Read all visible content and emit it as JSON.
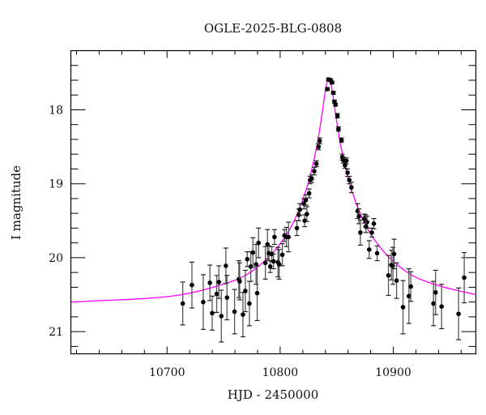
{
  "chart_data": {
    "type": "scatter",
    "title": "OGLE-2025-BLG-0808",
    "xlabel": "HJD - 2450000",
    "ylabel": "I magnitude",
    "xlim": [
      10615,
      10973
    ],
    "ylim": [
      21.3,
      17.2
    ],
    "y_inverted": true,
    "grid": false,
    "x_ticks": [
      10700,
      10800,
      10900
    ],
    "x_tick_labels": [
      "10700",
      "10800",
      "10900"
    ],
    "y_ticks": [
      18,
      19,
      20,
      21
    ],
    "y_tick_labels": [
      "18",
      "19",
      "20",
      "21"
    ],
    "colors": {
      "points": "#000000",
      "errorbars": "#555555",
      "model": "#ff00ff",
      "axes": "#000000"
    },
    "series": [
      {
        "kind": "data-with-errorbars",
        "points": [
          [
            10713.9,
            20.62,
            0.29
          ],
          [
            10722.0,
            20.37,
            0.31
          ],
          [
            10732.0,
            20.6,
            0.37
          ],
          [
            10737.9,
            20.34,
            0.24
          ],
          [
            10739.9,
            20.75,
            0.23
          ],
          [
            10743.9,
            20.49,
            0.25
          ],
          [
            10745.8,
            20.33,
            0.22
          ],
          [
            10748.0,
            20.79,
            0.35
          ],
          [
            10752.0,
            20.11,
            0.24
          ],
          [
            10753.0,
            20.54,
            0.3
          ],
          [
            10759.7,
            20.73,
            0.3
          ],
          [
            10763.5,
            20.29,
            0.25
          ],
          [
            10764.2,
            20.32,
            0.25
          ],
          [
            10767.1,
            20.77,
            0.3
          ],
          [
            10769.2,
            20.45,
            0.28
          ],
          [
            10770.9,
            20.02,
            0.1
          ],
          [
            10772.8,
            20.62,
            0.3
          ],
          [
            10774.0,
            20.12,
            0.2
          ],
          [
            10775.9,
            19.93,
            0.2
          ],
          [
            10778.7,
            20.09,
            0.27
          ],
          [
            10779.7,
            20.48,
            0.37
          ],
          [
            10780.9,
            19.8,
            0.2
          ],
          [
            10786.9,
            20.07,
            0.22
          ],
          [
            10788.8,
            19.82,
            0.2
          ],
          [
            10790.0,
            19.94,
            0.1
          ],
          [
            10791.2,
            20.12,
            0.08
          ],
          [
            10792.6,
            19.95,
            0.1
          ],
          [
            10794.1,
            20.05,
            0.1
          ],
          [
            10795.0,
            19.72,
            0.1
          ],
          [
            10798.1,
            20.06,
            0.2
          ],
          [
            10799.1,
            20.09,
            0.2
          ],
          [
            10801.9,
            19.96,
            0.15
          ],
          [
            10803.8,
            19.7,
            0.08
          ],
          [
            10805.5,
            19.72,
            0.13
          ],
          [
            10807.4,
            19.72,
            0.2
          ],
          [
            10814.8,
            19.6,
            0.1
          ],
          [
            10821.7,
            19.5,
            0.08
          ],
          [
            10816.5,
            19.42,
            0.08
          ],
          [
            10817.4,
            19.35,
            0.08
          ],
          [
            10821.0,
            19.27,
            0.07
          ],
          [
            10822.7,
            19.22,
            0.07
          ],
          [
            10823.6,
            19.41,
            0.1
          ],
          [
            10825.6,
            19.13,
            0.06
          ],
          [
            10826.5,
            18.95,
            0.05
          ],
          [
            10827.9,
            18.93,
            0.05
          ],
          [
            10830.1,
            18.83,
            0.05
          ],
          [
            10832.0,
            18.73,
            0.04
          ],
          [
            10833.9,
            18.5,
            0.04
          ],
          [
            10834.9,
            18.42,
            0.04
          ],
          [
            10841.7,
            17.72,
            0.02
          ],
          [
            10842.7,
            17.59,
            0.02
          ],
          [
            10844.6,
            17.6,
            0.02
          ],
          [
            10845.8,
            17.63,
            0.02
          ],
          [
            10847.0,
            17.77,
            0.02
          ],
          [
            10848.0,
            17.89,
            0.02
          ],
          [
            10848.9,
            17.93,
            0.02
          ],
          [
            10850.6,
            18.08,
            0.03
          ],
          [
            10851.5,
            18.26,
            0.03
          ],
          [
            10854.2,
            18.41,
            0.03
          ],
          [
            10854.9,
            18.64,
            0.04
          ],
          [
            10855.8,
            18.68,
            0.04
          ],
          [
            10858.5,
            18.69,
            0.04
          ],
          [
            10857.3,
            18.75,
            0.04
          ],
          [
            10859.6,
            18.85,
            0.05
          ],
          [
            10861.1,
            18.95,
            0.05
          ],
          [
            10863.0,
            19.05,
            0.07
          ],
          [
            10868.5,
            19.37,
            0.1
          ],
          [
            10869.6,
            19.44,
            0.1
          ],
          [
            10870.9,
            19.66,
            0.17
          ],
          [
            10874.4,
            19.47,
            0.06
          ],
          [
            10875.4,
            19.5,
            0.08
          ],
          [
            10876.8,
            19.52,
            0.08
          ],
          [
            10875.9,
            19.58,
            0.08
          ],
          [
            10881.0,
            19.66,
            0.06
          ],
          [
            10882.8,
            19.54,
            0.07
          ],
          [
            10878.7,
            19.89,
            0.12
          ],
          [
            10885.7,
            19.94,
            0.1
          ],
          [
            10895.7,
            20.24,
            0.27
          ],
          [
            10898.3,
            20.1,
            0.2
          ],
          [
            10899.7,
            20.11,
            0.25
          ],
          [
            10900.7,
            19.95,
            0.2
          ],
          [
            10902.9,
            20.31,
            0.24
          ],
          [
            10908.6,
            20.67,
            0.36
          ],
          [
            10913.8,
            20.52,
            0.37
          ],
          [
            10915.5,
            20.39,
            0.2
          ],
          [
            10935.5,
            20.62,
            0.3
          ],
          [
            10937.4,
            20.47,
            0.3
          ],
          [
            10942.7,
            20.66,
            0.3
          ],
          [
            10957.7,
            20.76,
            0.35
          ],
          [
            10962.7,
            20.27,
            0.34
          ]
        ]
      },
      {
        "kind": "model-curve",
        "x": [
          10615,
          10643,
          10683,
          10713,
          10743,
          10768,
          10788,
          10803,
          10813,
          10823,
          10829,
          10833,
          10835,
          10837,
          10839,
          10841,
          10843,
          10845,
          10847,
          10849,
          10851,
          10853,
          10857,
          10863,
          10873,
          10883,
          10898,
          10918,
          10943,
          10973
        ],
        "y": [
          20.6,
          20.58,
          20.55,
          20.5,
          20.39,
          20.25,
          20.02,
          19.75,
          19.48,
          19.08,
          18.74,
          18.44,
          18.26,
          18.06,
          17.84,
          17.66,
          17.58,
          17.66,
          17.84,
          18.06,
          18.26,
          18.44,
          18.74,
          19.08,
          19.48,
          19.75,
          20.02,
          20.25,
          20.39,
          20.5
        ]
      }
    ]
  }
}
